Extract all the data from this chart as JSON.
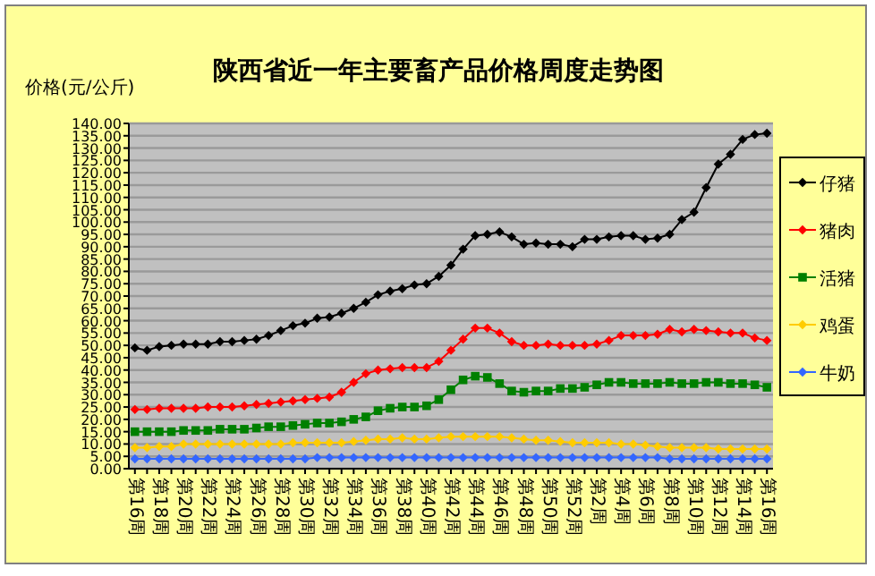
{
  "chart_data": {
    "type": "line",
    "title": "陕西省近一年主要畜产品价格周度走势图",
    "ylabel": "价格(元/公斤)",
    "categories": [
      "第16周",
      null,
      "第18周",
      null,
      "第20周",
      null,
      "第22周",
      null,
      "第24周",
      null,
      "第26周",
      null,
      "第28周",
      null,
      "第30周",
      null,
      "第32周",
      null,
      "第34周",
      null,
      "第36周",
      null,
      "第38周",
      null,
      "第40周",
      null,
      "第42周",
      null,
      "第44周",
      null,
      "第46周",
      null,
      "第48周",
      null,
      "第50周",
      null,
      "第52周",
      null,
      "第2周",
      null,
      "第4周",
      null,
      "第6周",
      null,
      "第8周",
      null,
      "第10周",
      null,
      "第12周",
      null,
      "第14周",
      null,
      "第16周"
    ],
    "series": [
      {
        "name": "仔猪",
        "color": "#000000",
        "marker": "diamond",
        "values": [
          49,
          48,
          49.5,
          50,
          50.5,
          50.5,
          50.5,
          51.5,
          51.5,
          52,
          52.5,
          54,
          56,
          58,
          59,
          61,
          61.5,
          63,
          65,
          67.5,
          70.5,
          72,
          73,
          74.5,
          75,
          78,
          82.5,
          89,
          94.5,
          95,
          96,
          94,
          91,
          91.5,
          91,
          91,
          90,
          93,
          93,
          94,
          94.5,
          94.5,
          93,
          93.5,
          95,
          101,
          104,
          114,
          123.5,
          127.5,
          133.5,
          135.5,
          136
        ]
      },
      {
        "name": "猪肉",
        "color": "#ff0000",
        "marker": "diamond",
        "values": [
          24,
          24,
          24.5,
          24.5,
          24.5,
          24.5,
          25,
          25,
          25,
          25.5,
          26,
          26.5,
          27,
          27.5,
          28,
          28.5,
          29,
          31,
          35,
          38.5,
          40,
          40.5,
          41,
          41,
          41,
          43.5,
          48,
          52.5,
          57,
          57,
          55,
          51.5,
          50,
          50,
          50.5,
          50,
          50,
          50,
          50.5,
          52,
          54,
          54,
          54,
          54.5,
          56.5,
          55.5,
          56.5,
          56,
          55.5,
          55,
          55,
          53,
          52
        ]
      },
      {
        "name": "活猪",
        "color": "#008000",
        "marker": "square",
        "values": [
          15,
          15,
          15,
          15,
          15.5,
          15.5,
          15.5,
          16,
          16,
          16,
          16.5,
          17,
          17,
          17.5,
          18,
          18.5,
          18.5,
          19,
          20,
          21,
          23.5,
          24.5,
          25,
          25,
          25.5,
          28,
          32,
          36,
          37.5,
          37,
          34.5,
          31.5,
          31,
          31.5,
          31.5,
          32.5,
          32.5,
          33,
          34,
          35,
          35,
          34.5,
          34.5,
          34.5,
          35,
          34.5,
          34.5,
          35,
          35,
          34.5,
          34.5,
          34,
          33
        ]
      },
      {
        "name": "鸡蛋",
        "color": "#ffcc00",
        "marker": "diamond",
        "values": [
          8.5,
          8.5,
          9,
          9,
          10,
          10,
          10,
          10,
          10,
          10,
          10,
          10,
          10,
          10.5,
          10.5,
          10.5,
          10.5,
          10.5,
          11,
          11.5,
          12,
          12,
          12.5,
          12,
          12,
          12.5,
          13,
          13,
          13,
          13,
          13,
          12.5,
          12,
          11.5,
          11.5,
          11,
          10.5,
          10.5,
          10.5,
          10.5,
          10,
          10,
          9.5,
          9,
          8.5,
          8.5,
          8.5,
          8.5,
          8,
          8,
          8,
          8,
          8
        ]
      },
      {
        "name": "牛奶",
        "color": "#3366ff",
        "marker": "diamond",
        "values": [
          4,
          4,
          4,
          4,
          4,
          4,
          4,
          4,
          4,
          4,
          4,
          4,
          4,
          4,
          4,
          4.5,
          4.5,
          4.5,
          4.5,
          4.5,
          4.5,
          4.5,
          4.5,
          4.5,
          4.5,
          4.5,
          4.5,
          4.5,
          4.5,
          4.5,
          4.5,
          4.5,
          4.5,
          4.5,
          4.5,
          4.5,
          4.5,
          4.5,
          4.5,
          4.5,
          4.5,
          4.5,
          4.5,
          4.5,
          4,
          4,
          4,
          4,
          4,
          4,
          4,
          4,
          4
        ]
      }
    ],
    "ylim": [
      0,
      140
    ],
    "yticks": [
      {
        "value": 0,
        "label": "0.00"
      },
      {
        "value": 5,
        "label": "5.00"
      },
      {
        "value": 10,
        "label": "10.00"
      },
      {
        "value": 15,
        "label": "15.00"
      },
      {
        "value": 20,
        "label": "20.00"
      },
      {
        "value": 25,
        "label": "25.00"
      },
      {
        "value": 30,
        "label": "30.00"
      },
      {
        "value": 35,
        "label": "35.00"
      },
      {
        "value": 40,
        "label": "40.00"
      },
      {
        "value": 45,
        "label": "45.00"
      },
      {
        "value": 50,
        "label": "50.00"
      },
      {
        "value": 55,
        "label": "55.00"
      },
      {
        "value": 60,
        "label": "60.00"
      },
      {
        "value": 65,
        "label": "65.00"
      },
      {
        "value": 70,
        "label": "70.00"
      },
      {
        "value": 75,
        "label": "75.00"
      },
      {
        "value": 80,
        "label": "80.00"
      },
      {
        "value": 85,
        "label": "85.00"
      },
      {
        "value": 90,
        "label": "90.00"
      },
      {
        "value": 95,
        "label": "95.00"
      },
      {
        "value": 100,
        "label": "100.00"
      },
      {
        "value": 105,
        "label": "105.00"
      },
      {
        "value": 110,
        "label": "110.00"
      },
      {
        "value": 115,
        "label": "115.00"
      },
      {
        "value": 120,
        "label": "120.00"
      },
      {
        "value": 125,
        "label": "125.00"
      },
      {
        "value": 130,
        "label": "130.00"
      },
      {
        "value": 135,
        "label": "135.00"
      },
      {
        "value": 140,
        "label": "140.00"
      }
    ],
    "grid": "y",
    "legend": "right"
  }
}
